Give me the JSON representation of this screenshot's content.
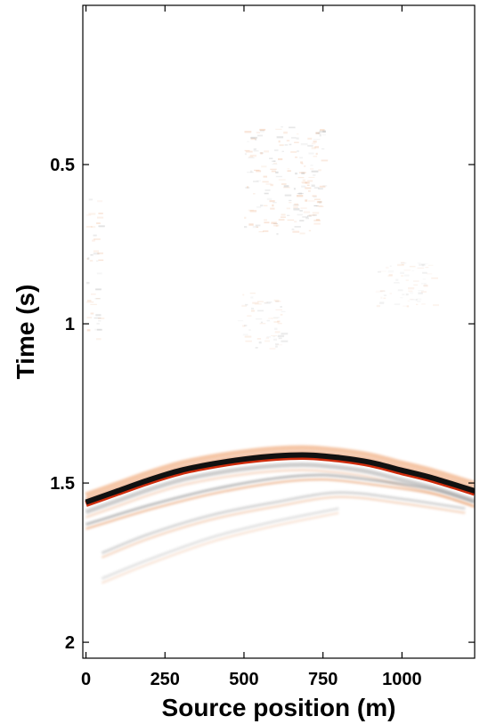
{
  "chart_data": {
    "type": "heatmap",
    "title": "",
    "xlabel": "Source position (m)",
    "ylabel": "Time (s)",
    "xlim": [
      -10,
      1230
    ],
    "ylim": [
      0.0,
      2.05
    ],
    "x_ticks": [
      0,
      250,
      500,
      750,
      1000
    ],
    "x_tick_labels": [
      "0",
      "250",
      "500",
      "750",
      "1000"
    ],
    "y_ticks": [
      0.5,
      1.0,
      1.5,
      2.0
    ],
    "y_tick_labels": [
      "0.5",
      "1",
      "1.5",
      "2"
    ],
    "y_axis_inverted": true,
    "grid": false,
    "colormap": {
      "negative": "#cc2200",
      "zero": "#ffffff",
      "positive": "#000000"
    },
    "events": [
      {
        "name": "main-reflection",
        "x": [
          0,
          100,
          200,
          300,
          400,
          500,
          600,
          700,
          800,
          900,
          1000,
          1100,
          1230
        ],
        "t": [
          1.56,
          1.525,
          1.49,
          1.46,
          1.44,
          1.425,
          1.415,
          1.412,
          1.42,
          1.435,
          1.46,
          1.485,
          1.525
        ],
        "amplitude": 1.0
      },
      {
        "name": "lower-event-1",
        "x": [
          0,
          200,
          400,
          600,
          750,
          900,
          1100,
          1230
        ],
        "t": [
          1.63,
          1.57,
          1.52,
          1.485,
          1.475,
          1.49,
          1.52,
          1.56
        ],
        "amplitude": 0.35
      },
      {
        "name": "lower-event-2",
        "x": [
          50,
          200,
          400,
          600,
          800,
          1000,
          1200
        ],
        "t": [
          1.72,
          1.66,
          1.6,
          1.56,
          1.53,
          1.55,
          1.58
        ],
        "amplitude": 0.22
      },
      {
        "name": "lower-event-3",
        "x": [
          50,
          200,
          400,
          600,
          800
        ],
        "t": [
          1.8,
          1.74,
          1.67,
          1.62,
          1.58
        ],
        "amplitude": 0.15
      }
    ],
    "noise_patches": [
      {
        "x": [
          500,
          750
        ],
        "t": [
          0.38,
          0.72
        ],
        "amplitude": 0.3
      },
      {
        "x": [
          0,
          40
        ],
        "t": [
          0.6,
          1.05
        ],
        "amplitude": 0.3
      },
      {
        "x": [
          480,
          620
        ],
        "t": [
          0.9,
          1.08
        ],
        "amplitude": 0.2
      },
      {
        "x": [
          900,
          1100
        ],
        "t": [
          0.8,
          0.95
        ],
        "amplitude": 0.15
      }
    ]
  }
}
